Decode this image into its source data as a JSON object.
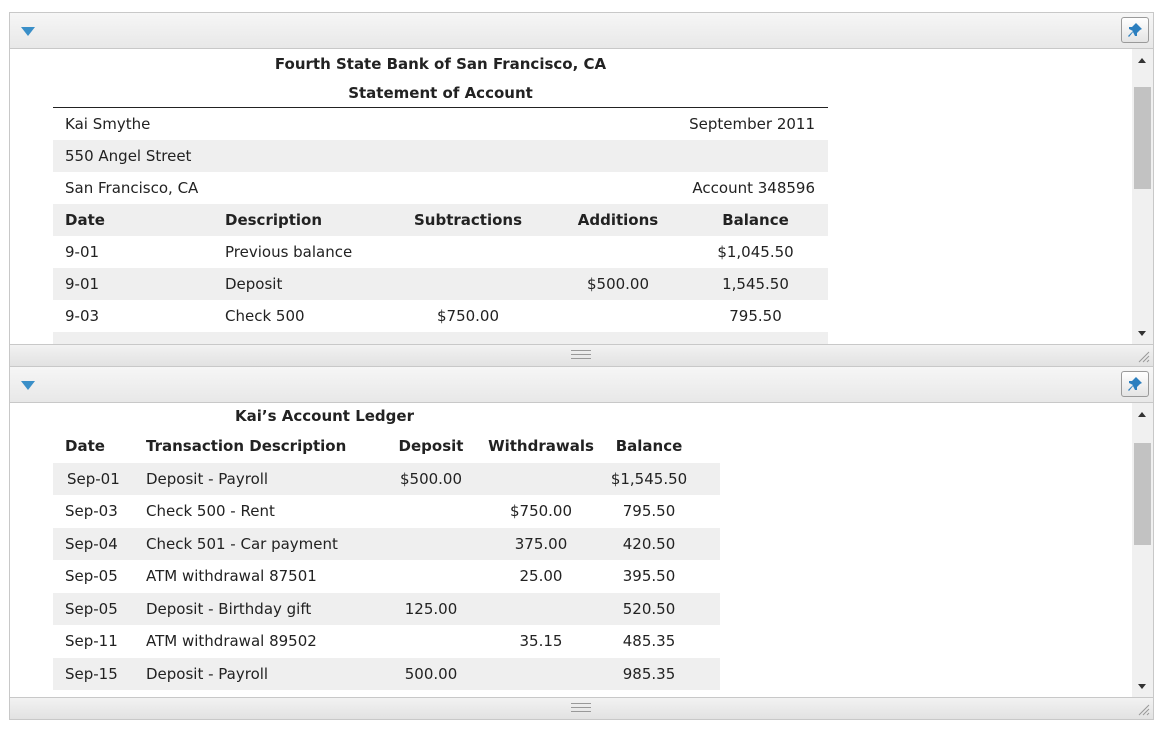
{
  "statement": {
    "bank_name": "Fourth State Bank of San Francisco, CA",
    "title": "Statement of Account",
    "customer_name": "Kai Smythe",
    "period": "September 2011",
    "street": "550 Angel Street",
    "city": "San Francisco, CA",
    "account": "Account 348596",
    "columns": [
      "Date",
      "Description",
      "Subtractions",
      "Additions",
      "Balance"
    ],
    "rows": [
      [
        "9-01",
        "Previous balance",
        "",
        "",
        "$1,045.50"
      ],
      [
        "9-01",
        "Deposit",
        "",
        "$500.00",
        "1,545.50"
      ],
      [
        "9-03",
        "Check 500",
        "$750.00",
        "",
        "795.50"
      ]
    ]
  },
  "ledger": {
    "title": "Kai’s Account Ledger",
    "columns": [
      "Date",
      "Transaction Description",
      "Deposit",
      "Withdrawals",
      "Balance"
    ],
    "rows": [
      [
        "Sep-01",
        "Deposit - Payroll",
        "$500.00",
        "",
        "$1,545.50"
      ],
      [
        "Sep-03",
        "Check 500 - Rent",
        "",
        "$750.00",
        "795.50"
      ],
      [
        "Sep-04",
        "Check 501 - Car payment",
        "",
        "375.00",
        "420.50"
      ],
      [
        "Sep-05",
        "ATM withdrawal 87501",
        "",
        "25.00",
        "395.50"
      ],
      [
        "Sep-05",
        "Deposit - Birthday gift",
        "125.00",
        "",
        "520.50"
      ],
      [
        "Sep-11",
        "ATM withdrawal 89502",
        "",
        "35.15",
        "485.35"
      ],
      [
        "Sep-15",
        "Deposit - Payroll",
        "500.00",
        "",
        "985.35"
      ]
    ]
  },
  "colors": {
    "accent": "#3a8fc8",
    "stripe": "#efefef",
    "header": "#ececec"
  },
  "icons": {
    "collapse": "triangle-down-icon",
    "pin": "pin-icon",
    "grip": "splitter-grip-icon",
    "resize": "resize-corner-icon"
  }
}
